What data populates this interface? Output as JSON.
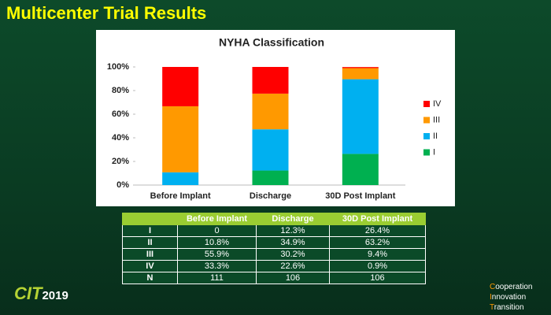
{
  "slide_title": "Multicenter Trial Results",
  "chart_data": {
    "type": "stacked_bar",
    "title": "NYHA Classification",
    "categories": [
      "Before Implant",
      "Discharge",
      "30D Post Implant"
    ],
    "series": [
      {
        "name": "I",
        "color": "#00b050",
        "values": [
          0,
          12.3,
          26.4
        ]
      },
      {
        "name": "II",
        "color": "#00b0f0",
        "values": [
          10.8,
          34.9,
          63.2
        ]
      },
      {
        "name": "III",
        "color": "#ff9900",
        "values": [
          55.9,
          30.2,
          9.4
        ]
      },
      {
        "name": "IV",
        "color": "#ff0000",
        "values": [
          33.3,
          22.6,
          0.9
        ]
      }
    ],
    "ylim": [
      0,
      100
    ],
    "yticks": [
      {
        "value": 0,
        "label": "0%"
      },
      {
        "value": 20,
        "label": "20%"
      },
      {
        "value": 40,
        "label": "40%"
      },
      {
        "value": 60,
        "label": "60%"
      },
      {
        "value": 80,
        "label": "80%"
      },
      {
        "value": 100,
        "label": "100%"
      }
    ],
    "legend": "right"
  },
  "table": {
    "columns": [
      "Before Implant",
      "Discharge",
      "30D Post Implant"
    ],
    "rows": [
      {
        "label": "I",
        "cells": [
          "0",
          "12.3%",
          "26.4%"
        ]
      },
      {
        "label": "II",
        "cells": [
          "10.8%",
          "34.9%",
          "63.2%"
        ]
      },
      {
        "label": "III",
        "cells": [
          "55.9%",
          "30.2%",
          "9.4%"
        ]
      },
      {
        "label": "IV",
        "cells": [
          "33.3%",
          "22.6%",
          "0.9%"
        ]
      },
      {
        "label": "N",
        "cells": [
          "111",
          "106",
          "106"
        ]
      }
    ]
  },
  "footer": {
    "logo": "CIT",
    "logo_year": "2019",
    "motto": [
      "Cooperation",
      "Innovation",
      "Transition"
    ]
  }
}
